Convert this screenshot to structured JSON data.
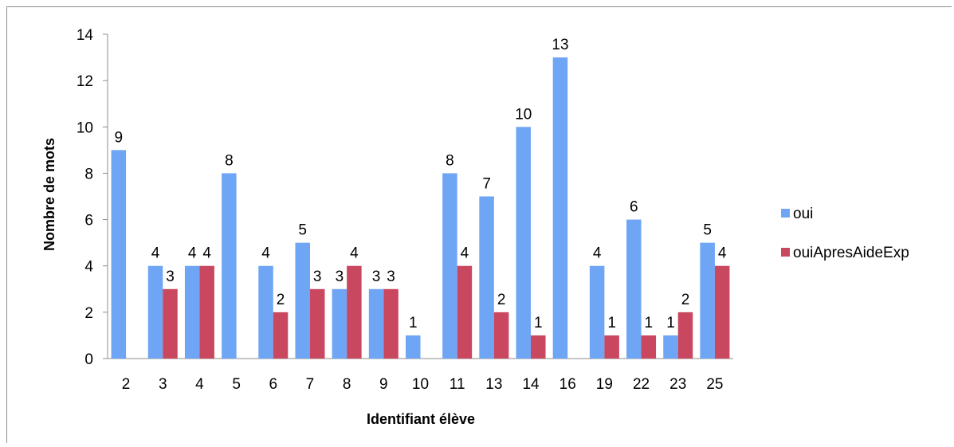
{
  "chart_data": {
    "type": "bar",
    "xlabel": "Identifiant élève",
    "ylabel": "Nombre de mots",
    "ylim": [
      0,
      14
    ],
    "yticks": [
      "0",
      "2",
      "4",
      "6",
      "8",
      "10",
      "12",
      "14"
    ],
    "categories": [
      "2",
      "3",
      "4",
      "5",
      "6",
      "7",
      "8",
      "9",
      "10",
      "11",
      "13",
      "14",
      "16",
      "19",
      "22",
      "23",
      "25"
    ],
    "series": [
      {
        "name": "oui",
        "color": "#6fa5f5",
        "values": [
          9,
          4,
          4,
          8,
          4,
          5,
          3,
          3,
          1,
          8,
          7,
          10,
          13,
          4,
          6,
          1,
          5
        ]
      },
      {
        "name": "ouiApresAideExp",
        "color": "#c9475f",
        "values": [
          null,
          3,
          4,
          null,
          2,
          3,
          4,
          3,
          null,
          4,
          2,
          1,
          null,
          1,
          1,
          2,
          4
        ]
      }
    ],
    "grid": false,
    "legend_position": "right"
  }
}
